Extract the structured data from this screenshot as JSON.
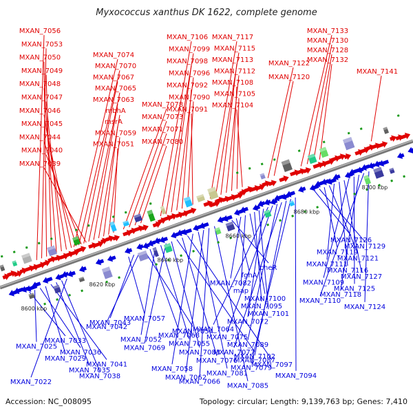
{
  "title": "Myxococcus xanthus DK 1622, complete genome",
  "accession": "Accession: NC_008095",
  "summary": "Topology: circular; Length: 9,139,763 bp; Genes: 7,410",
  "colors": {
    "top_genes": "#e00000",
    "bottom_genes": "#0000dd",
    "axis": "#888888"
  },
  "scale_labels": [
    "8600 kbp",
    "8620 kbp",
    "8640 kbp",
    "8660 kbp",
    "8680 kbp",
    "8700 kbp"
  ],
  "top_genes": [
    "MXAN_7056",
    "MXAN_7053",
    "MXAN_7050",
    "MXAN_7049",
    "MXAN_7048",
    "MXAN_7047",
    "MXAN_7046",
    "MXAN_7045",
    "MXAN_7044",
    "MXAN_7040",
    "MXAN_7039",
    "MXAN_7074",
    "MXAN_7070",
    "MXAN_7067",
    "MXAN_7065",
    "MXAN_7063",
    "mbhA",
    "msrA",
    "MXAN_7059",
    "MXAN_7051",
    "MXAN_7078",
    "MXAN_7073",
    "MXAN_7071",
    "MXAN_7080",
    "MXAN_7106",
    "MXAN_7099",
    "MXAN_7098",
    "MXAN_7096",
    "MXAN_7092",
    "MXAN_7090",
    "MXAN_7091",
    "MXAN_7117",
    "MXAN_7115",
    "MXAN_7113",
    "MXAN_7112",
    "MXAN_7108",
    "MXAN_7105",
    "MXAN_7104",
    "MXAN_7122",
    "MXAN_7120",
    "MXAN_7133",
    "MXAN_7130",
    "MXAN_7128",
    "MXAN_7132",
    "MXAN_7141"
  ],
  "bottom_genes": [
    "MXAN_7126",
    "MXAN_7129",
    "MXAN_7119",
    "MXAN_7121",
    "MXAN_7111",
    "MXAN_7116",
    "MXAN_7127",
    "MXAN_7109",
    "MXAN_7125",
    "MXAN_7118",
    "MXAN_7110",
    "MXAN_7124",
    "cheR",
    "fghA",
    "MXAN_7082",
    "map",
    "MXAN_7100",
    "MXAN_7095",
    "MXAN_7101",
    "MXAN_7072",
    "MXAN_7064",
    "MXAN_7075",
    "MXAN_7089",
    "MXAN_7077",
    "MXAN_7087",
    "MXAN_7079",
    "MXAN_7094",
    "MXAN_7057",
    "MXAN_7043",
    "MXAN_7042",
    "MXAN_7054",
    "MXAN_7068",
    "MXAN_7052",
    "MXAN_7055",
    "MXAN_7069",
    "MXAN_7083",
    "MXAN_7102",
    "MXAN_7076",
    "MXAN_7097",
    "MXAN_7058",
    "MXAN_7081",
    "MXAN_7062",
    "MXAN_7066",
    "MXAN_7085",
    "MXAN_7033",
    "MXAN_7025",
    "MXAN_7036",
    "MXAN_7029",
    "MXAN_7041",
    "MXAN_7035",
    "MXAN_7038",
    "MXAN_7022"
  ]
}
